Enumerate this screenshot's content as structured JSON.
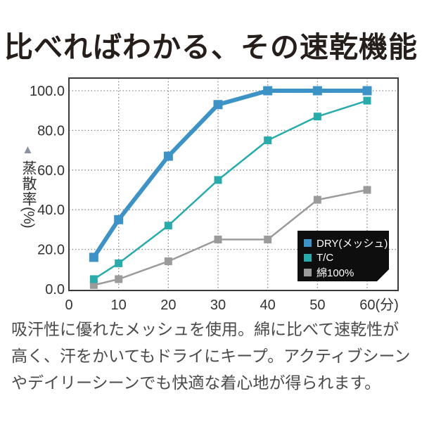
{
  "page": {
    "title": "比べればわかる、その速乾機能",
    "description": "吸汗性に優れたメッシュを使用。綿に比べて速乾性が高く、汗をかいてもドライにキープ。アクティブシーンやデイリーシーンでも快適な着心地が得られます。"
  },
  "icons": {
    "triangle_up": "▲"
  },
  "colors": {
    "dry_blue": "#3d92c6",
    "tc_teal": "#2aabab",
    "cotton_gray": "#9b9b9b",
    "legend_bg": "#0e0e0e",
    "legend_text": "#ffffff",
    "grid": "#8a8a8a",
    "frame": "#3a3a3a",
    "axis_text": "#333333",
    "title_text": "#251e1b",
    "body_text": "#4a4a4a",
    "triangle": "#8b93a1"
  },
  "chart_data": {
    "type": "line",
    "title": "",
    "ylabel": "蒸散率",
    "ylabel_unit": "(%)",
    "xlabel_unit": "(分)",
    "x": [
      5,
      10,
      20,
      30,
      40,
      50,
      60
    ],
    "x_tick_values": [
      0,
      10,
      20,
      30,
      40,
      50,
      60
    ],
    "x_tick_labels": [
      "0",
      "10",
      "20",
      "30",
      "40",
      "50",
      "60(分)"
    ],
    "y_tick_values": [
      0,
      20,
      40,
      60,
      80,
      100
    ],
    "y_tick_labels": [
      "0.0",
      "20.0",
      "40.0",
      "60.0",
      "80.0",
      "100.0"
    ],
    "xlim": [
      0,
      66
    ],
    "ylim": [
      0,
      107
    ],
    "grid": "dotted",
    "legend_position": "lower-right",
    "series": [
      {
        "name": "DRY(メッシュ)",
        "color": "#3d92c6",
        "marker": "square",
        "line_width": 6,
        "values": [
          16,
          35,
          67,
          93,
          100,
          100,
          100
        ]
      },
      {
        "name": "T/C",
        "color": "#2aabab",
        "marker": "square",
        "line_width": 2.5,
        "values": [
          5,
          13,
          32,
          55,
          75,
          87,
          95
        ]
      },
      {
        "name": "綿100%",
        "color": "#9b9b9b",
        "marker": "square",
        "line_width": 2.5,
        "values": [
          2,
          5,
          14,
          25,
          25,
          45,
          50
        ]
      }
    ]
  }
}
